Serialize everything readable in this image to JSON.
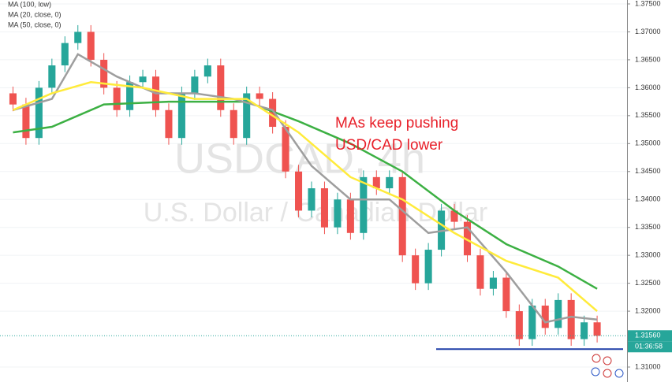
{
  "chart_data": {
    "type": "candlestick",
    "watermark": "USDCAD, 4h",
    "watermark_subtitle": "U.S. Dollar / Canadian Dollar",
    "annotation": [
      "MAs keep pushing",
      "USD/CAD lower"
    ],
    "up_color": "#26a69a",
    "down_color": "#ef5350",
    "ohlc": {
      "open": [
        1.359,
        1.357,
        1.351,
        1.36,
        1.364,
        1.368,
        1.37,
        1.365,
        1.36,
        1.356,
        1.361,
        1.362,
        1.356,
        1.351,
        1.359,
        1.362,
        1.364,
        1.356,
        1.351,
        1.359,
        1.358,
        1.353,
        1.345,
        1.338,
        1.342,
        1.335,
        1.34,
        1.334,
        1.344,
        1.342,
        1.344,
        1.33,
        1.325,
        1.331,
        1.338,
        1.336,
        1.33,
        1.324,
        1.326,
        1.32,
        1.315,
        1.321,
        1.317,
        1.322,
        1.315,
        1.318
      ],
      "high": [
        1.3602,
        1.3582,
        1.3612,
        1.3652,
        1.3692,
        1.3712,
        1.3712,
        1.3662,
        1.3612,
        1.3622,
        1.3632,
        1.3632,
        1.3572,
        1.3602,
        1.3632,
        1.3652,
        1.3652,
        1.3572,
        1.3602,
        1.3602,
        1.3592,
        1.3542,
        1.3462,
        1.3432,
        1.3432,
        1.3412,
        1.3412,
        1.3452,
        1.3452,
        1.3452,
        1.3452,
        1.3312,
        1.3322,
        1.3392,
        1.3392,
        1.3372,
        1.3312,
        1.3272,
        1.3272,
        1.3212,
        1.3222,
        1.3222,
        1.3232,
        1.3232,
        1.3192,
        1.3192
      ],
      "low": [
        1.3558,
        1.3498,
        1.3498,
        1.3588,
        1.3628,
        1.3668,
        1.3638,
        1.3588,
        1.3548,
        1.3548,
        1.3598,
        1.3548,
        1.3498,
        1.3498,
        1.3578,
        1.3608,
        1.3548,
        1.3498,
        1.3498,
        1.3568,
        1.3518,
        1.3438,
        1.3368,
        1.3368,
        1.3338,
        1.3338,
        1.3328,
        1.3328,
        1.3408,
        1.3408,
        1.3288,
        1.3238,
        1.3238,
        1.3298,
        1.3348,
        1.3288,
        1.3228,
        1.3228,
        1.3188,
        1.3138,
        1.3138,
        1.3158,
        1.3158,
        1.3138,
        1.3138,
        1.3144
      ],
      "close": [
        1.357,
        1.351,
        1.36,
        1.364,
        1.368,
        1.37,
        1.365,
        1.36,
        1.356,
        1.361,
        1.362,
        1.356,
        1.351,
        1.359,
        1.362,
        1.364,
        1.356,
        1.351,
        1.359,
        1.358,
        1.353,
        1.345,
        1.338,
        1.342,
        1.335,
        1.34,
        1.334,
        1.344,
        1.342,
        1.344,
        1.33,
        1.325,
        1.331,
        1.338,
        1.336,
        1.33,
        1.324,
        1.326,
        1.32,
        1.315,
        1.321,
        1.317,
        1.322,
        1.315,
        1.318,
        1.3156
      ]
    },
    "series": [
      {
        "name": "MA (100, low)",
        "color": "#3cb043",
        "x": [
          0,
          3,
          7,
          12,
          18,
          22,
          26,
          30,
          34,
          38,
          42,
          45
        ],
        "values": [
          1.352,
          1.353,
          1.357,
          1.3575,
          1.3575,
          1.354,
          1.35,
          1.345,
          1.338,
          1.332,
          1.328,
          1.324
        ]
      },
      {
        "name": "MA (20, close, 0)",
        "color": "#9e9e9e",
        "x": [
          0,
          3,
          5,
          8,
          11,
          14,
          17,
          20,
          23,
          26,
          29,
          32,
          35,
          38,
          41,
          43,
          45
        ],
        "values": [
          1.356,
          1.358,
          1.366,
          1.362,
          1.359,
          1.359,
          1.358,
          1.356,
          1.346,
          1.34,
          1.34,
          1.334,
          1.335,
          1.327,
          1.318,
          1.319,
          1.3185
        ]
      },
      {
        "name": "MA (50, close, 0)",
        "color": "#ffeb3b",
        "x": [
          0,
          3,
          6,
          10,
          14,
          18,
          22,
          26,
          30,
          34,
          38,
          42,
          45
        ],
        "values": [
          1.356,
          1.359,
          1.361,
          1.36,
          1.358,
          1.358,
          1.352,
          1.344,
          1.34,
          1.334,
          1.329,
          1.326,
          1.32
        ]
      }
    ],
    "xlim": [
      -1,
      47
    ],
    "ylim": [
      1.31,
      1.375
    ],
    "yticks": [
      {
        "value": 1.375,
        "label": "1.37500"
      },
      {
        "value": 1.37,
        "label": "1.37000"
      },
      {
        "value": 1.365,
        "label": "1.36500"
      },
      {
        "value": 1.36,
        "label": "1.36000"
      },
      {
        "value": 1.355,
        "label": "1.35500"
      },
      {
        "value": 1.35,
        "label": "1.35000"
      },
      {
        "value": 1.345,
        "label": "1.34500"
      },
      {
        "value": 1.34,
        "label": "1.34000"
      },
      {
        "value": 1.335,
        "label": "1.33500"
      },
      {
        "value": 1.33,
        "label": "1.33000"
      },
      {
        "value": 1.325,
        "label": "1.32500"
      },
      {
        "value": 1.32,
        "label": "1.32000"
      },
      {
        "value": 1.31,
        "label": "1.31000"
      }
    ],
    "grid": true,
    "last_price": {
      "value": 1.3156,
      "label": "1.31560"
    },
    "countdown": "01:36:58",
    "support": {
      "value": 1.3132,
      "x": [
        32.6,
        47
      ],
      "color": "#1f3fa8"
    }
  }
}
